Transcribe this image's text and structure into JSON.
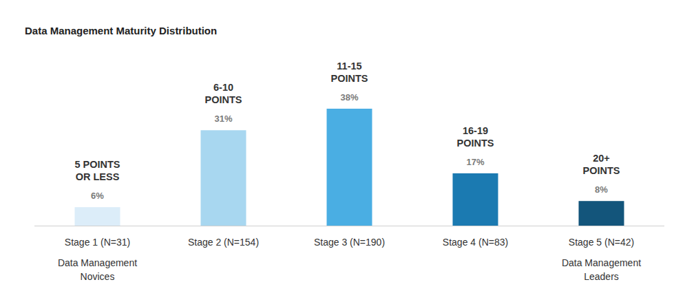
{
  "chart_data": {
    "type": "bar",
    "title": "Data Management Maturity Distribution",
    "categories": [
      "Stage 1 (N=31)",
      "Stage 2 (N=154)",
      "Stage 3 (N=190)",
      "Stage 4 (N=83)",
      "Stage 5 (N=42)"
    ],
    "values": [
      6,
      31,
      38,
      17,
      8
    ],
    "value_labels": [
      "6%",
      "31%",
      "38%",
      "17%",
      "8%"
    ],
    "bar_headers": [
      [
        "5 POINTS",
        "OR LESS"
      ],
      [
        "6-10",
        "POINTS"
      ],
      [
        "11-15",
        "POINTS"
      ],
      [
        "16-19",
        "POINTS"
      ],
      [
        "20+",
        "POINTS"
      ]
    ],
    "category_notes": [
      [
        "Data Management",
        "Novices"
      ],
      null,
      null,
      null,
      [
        "Data Management",
        "Leaders"
      ]
    ],
    "colors": [
      "#dcedf9",
      "#a8d7f0",
      "#4aaee3",
      "#1b7ab1",
      "#13557b"
    ],
    "ylim": [
      0,
      38
    ],
    "data_labels": true,
    "tick_labels": "x",
    "grid": false
  }
}
